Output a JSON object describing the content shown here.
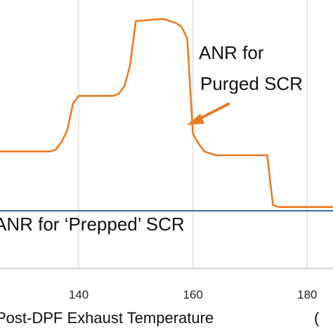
{
  "chart_data": {
    "type": "line",
    "title": "",
    "xlabel": "Post-DPF Exhaust Temperature",
    "xlabel_suffix": "(",
    "ylabel": "",
    "xlim": [
      125,
      185
    ],
    "ylim": [
      0,
      7
    ],
    "grid": "vertical",
    "xticks": [
      140,
      160,
      180
    ],
    "series": [
      {
        "name": "ANR for Purged SCR",
        "color": "#E87B22",
        "x": [
          125,
          133,
          135,
          136,
          137,
          138,
          139,
          140,
          146,
          147,
          148,
          149,
          150,
          154,
          155,
          156,
          157,
          158,
          159,
          160,
          161,
          162,
          163,
          164,
          165,
          166,
          168,
          170,
          171,
          172,
          173,
          174,
          175,
          176,
          180,
          185
        ],
        "values": [
          3.05,
          3.05,
          3.05,
          3.1,
          3.3,
          3.6,
          4.3,
          4.5,
          4.5,
          4.55,
          4.75,
          5.3,
          6.45,
          6.5,
          6.5,
          6.45,
          6.4,
          6.3,
          6.0,
          3.5,
          3.25,
          3.05,
          3.0,
          2.95,
          2.95,
          2.95,
          2.95,
          2.95,
          2.95,
          2.95,
          2.95,
          1.65,
          1.6,
          1.6,
          1.6,
          1.6
        ]
      },
      {
        "name": "ANR for ‘Prepped’ SCR",
        "color": "#2E4D9C",
        "x": [
          125,
          185
        ],
        "values": [
          1.5,
          1.5
        ]
      }
    ],
    "annotations": [
      {
        "lines": [
          "ANR for",
          "Purged SCR"
        ],
        "arrow": true
      },
      {
        "lines": [
          "ANR for ‘Prepped’ SCR"
        ],
        "arrow": false
      }
    ],
    "colors": {
      "grid": "#D9D9D9",
      "axis": "#BFBFBF",
      "arrow": "#E87B22"
    }
  }
}
